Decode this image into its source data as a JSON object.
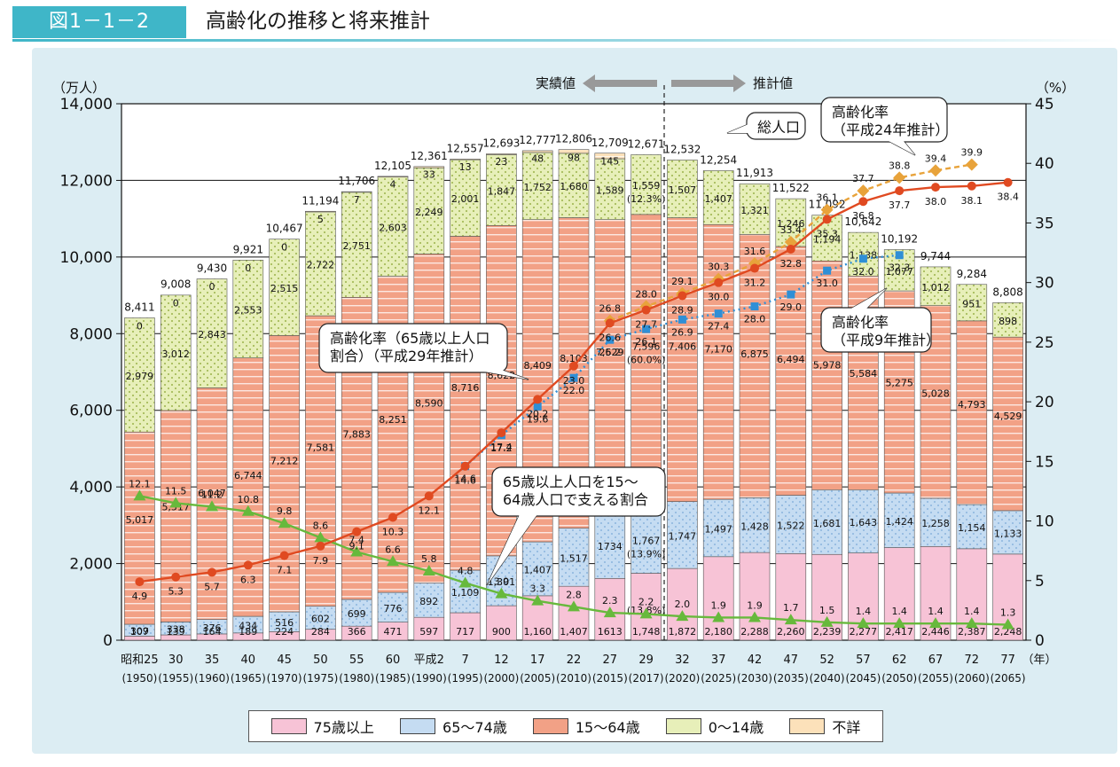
{
  "header": {
    "figure_number": "図1－1－2",
    "title": "高齢化の推移と将来推計"
  },
  "colors": {
    "age_75_over": "#f7c3d6",
    "age_65_74": "#c5dcf2",
    "age_15_64": "#f2a186",
    "age_0_14": "#e7efb9",
    "unknown": "#fce1ba",
    "ratio_line": "#e04a21",
    "h9_line": "#2f8fd6",
    "h24_line": "#e8a33b",
    "support_line": "#67b93c",
    "accent": "#3fb6c8"
  },
  "legend": [
    {
      "key": "age_75_over",
      "label": "75歳以上"
    },
    {
      "key": "age_65_74",
      "label": "65～74歳"
    },
    {
      "key": "age_15_64",
      "label": "15～64歳"
    },
    {
      "key": "age_0_14",
      "label": "0～14歳"
    },
    {
      "key": "unknown",
      "label": "不詳"
    }
  ],
  "annotations": {
    "left_axis_unit": "（万人）",
    "right_axis_unit": "（%）",
    "year_unit": "（年）",
    "actual": "実績値",
    "projected": "推計値",
    "total_population": "総人口",
    "ratio_h29": "高齢化率（65歳以上人口割合）（平成29年推計）",
    "ratio_h29_lines": [
      "高齢化率（65歳以上人口",
      "割合）（平成29年推計）"
    ],
    "ratio_h24_lines": [
      "高齢化率",
      "（平成24年推計）"
    ],
    "ratio_h9_lines": [
      "高齢化率",
      "（平成9年推計）"
    ],
    "support_lines": [
      "65歳以上人口を15～",
      "64歳人口で支える割合"
    ],
    "share_2017_1564": "(60.0%)",
    "share_2017_6574": "(13.9%)",
    "share_2017_75": "(13.8%)",
    "share_2017_014": "(12.3%)"
  },
  "chart_data": {
    "type": "bar",
    "title": "高齢化の推移と将来推計",
    "categories": [
      "昭和25",
      "30",
      "35",
      "40",
      "45",
      "50",
      "55",
      "60",
      "平成2",
      "7",
      "12",
      "17",
      "22",
      "27",
      "29",
      "32",
      "37",
      "42",
      "47",
      "52",
      "57",
      "62",
      "67",
      "72",
      "77"
    ],
    "category_years": [
      "(1950)",
      "(1955)",
      "(1960)",
      "(1965)",
      "(1970)",
      "(1975)",
      "(1980)",
      "(1985)",
      "(1990)",
      "(1995)",
      "(2000)",
      "(2005)",
      "(2010)",
      "(2015)",
      "(2017)",
      "(2020)",
      "(2025)",
      "(2030)",
      "(2035)",
      "(2040)",
      "(2045)",
      "(2050)",
      "(2055)",
      "(2060)",
      "(2065)"
    ],
    "ylim_left": [
      0,
      14000
    ],
    "ylim_right": [
      0,
      45
    ],
    "left_ticks": [
      "0",
      "2,000",
      "4,000",
      "6,000",
      "8,000",
      "10,000",
      "12,000",
      "14,000"
    ],
    "right_ticks": [
      "0",
      "5",
      "10",
      "15",
      "20",
      "25",
      "30",
      "35",
      "40",
      "45"
    ],
    "series": [
      {
        "name": "75歳以上",
        "values": [
          107,
          139,
          164,
          189,
          224,
          284,
          366,
          471,
          597,
          717,
          900,
          1160,
          1407,
          1613,
          1748,
          1872,
          2180,
          2288,
          2260,
          2239,
          2277,
          2417,
          2446,
          2387,
          2248
        ],
        "labels": [
          "107",
          "139",
          "164",
          "189",
          "224",
          "284",
          "366",
          "471",
          "597",
          "717",
          "900",
          "1,160",
          "1,407",
          "1613",
          "1,748",
          "1,872",
          "2,180",
          "2,288",
          "2,260",
          "2,239",
          "2,277",
          "2,417",
          "2,446",
          "2,387",
          "2,248"
        ]
      },
      {
        "name": "65～74歳",
        "values": [
          309,
          338,
          376,
          434,
          516,
          602,
          699,
          776,
          892,
          1109,
          1301,
          1407,
          1517,
          1734,
          1767,
          1747,
          1497,
          1428,
          1522,
          1681,
          1643,
          1424,
          1258,
          1154,
          1133
        ],
        "labels": [
          "309",
          "338",
          "376",
          "434",
          "516",
          "602",
          "699",
          "776",
          "892",
          "1,109",
          "1,301",
          "1,407",
          "1,517",
          "1734",
          "1,767",
          "1,747",
          "1,497",
          "1,428",
          "1,522",
          "1,681",
          "1,643",
          "1,424",
          "1,258",
          "1,154",
          "1,133"
        ]
      },
      {
        "name": "15～64歳",
        "values": [
          5017,
          5517,
          6047,
          6744,
          7212,
          7581,
          7883,
          8251,
          8590,
          8716,
          8622,
          8409,
          8103,
          7629,
          7596,
          7406,
          7170,
          6875,
          6494,
          5978,
          5584,
          5275,
          5028,
          4793,
          4529
        ],
        "labels": [
          "5,017",
          "5,517",
          "6,047",
          "6,744",
          "7,212",
          "7,581",
          "7,883",
          "8,251",
          "8,590",
          "8,716",
          "8,622",
          "8,409",
          "8,103",
          "7,629",
          "7,596",
          "7,406",
          "7,170",
          "6,875",
          "6,494",
          "5,978",
          "5,584",
          "5,275",
          "5,028",
          "4,793",
          "4,529"
        ]
      },
      {
        "name": "0～14歳",
        "values": [
          2979,
          3012,
          2843,
          2553,
          2515,
          2722,
          2751,
          2603,
          2249,
          2001,
          1847,
          1752,
          1680,
          1589,
          1559,
          1507,
          1407,
          1321,
          1246,
          1194,
          1138,
          1077,
          1012,
          951,
          898
        ],
        "labels": [
          "2,979",
          "3,012",
          "2,843",
          "2,553",
          "2,515",
          "2,722",
          "2,751",
          "2,603",
          "2,249",
          "2,001",
          "1,847",
          "1,752",
          "1,680",
          "1,589",
          "1,559",
          "1,507",
          "1,407",
          "1,321",
          "1,246",
          "1,194",
          "1,138",
          "1,077",
          "1,012",
          "951",
          "898"
        ]
      },
      {
        "name": "不詳",
        "values": [
          0,
          0,
          0,
          0,
          0,
          5,
          7,
          4,
          33,
          13,
          23,
          48,
          98,
          145,
          0,
          0,
          0,
          0,
          0,
          0,
          0,
          0,
          0,
          0,
          0
        ],
        "labels": [
          "0",
          "0",
          "0",
          "0",
          "0",
          "5",
          "7",
          "4",
          "33",
          "13",
          "23",
          "48",
          "98",
          "145",
          "",
          "",
          "",
          "",
          "",
          "",
          "",
          "",
          "",
          "",
          ""
        ]
      }
    ],
    "totals": [
      "8,411",
      "9,008",
      "9,430",
      "9,921",
      "10,467",
      "11,194",
      "11,706",
      "12,105",
      "12,361",
      "12,557",
      "12,693",
      "12,777",
      "12,806",
      "12,709",
      "12,671",
      "12,532",
      "12,254",
      "11,913",
      "11,522",
      "11,092",
      "10,642",
      "10,192",
      "9,744",
      "9,284",
      "8,808"
    ],
    "total_values": [
      8411,
      9008,
      9430,
      9921,
      10467,
      11194,
      11706,
      12105,
      12361,
      12557,
      12693,
      12777,
      12806,
      12709,
      12671,
      12532,
      12254,
      11913,
      11522,
      11092,
      10642,
      10192,
      9744,
      9284,
      8808
    ],
    "ratio_h29": {
      "name": "高齢化率（平成29年推計）",
      "values": [
        4.9,
        5.3,
        5.7,
        6.3,
        7.1,
        7.9,
        9.1,
        10.3,
        12.1,
        14.6,
        17.4,
        20.2,
        23.0,
        26.6,
        27.7,
        28.9,
        30.0,
        31.2,
        32.8,
        35.3,
        36.8,
        37.7,
        38.0,
        38.1,
        38.4
      ],
      "labels": [
        "4.9",
        "5.3",
        "5.7",
        "6.3",
        "7.1",
        "7.9",
        "9.1",
        "10.3",
        "12.1",
        "14.6",
        "17.4",
        "20.2",
        "23.0",
        "26.6",
        "27.7",
        "28.9",
        "30.0",
        "31.2",
        "32.8",
        "35.3",
        "36.8",
        "37.7",
        "38.0",
        "38.1",
        "38.4"
      ]
    },
    "ratio_h9": {
      "name": "高齢化率（平成9年推計）",
      "start_index": 9,
      "values": [
        14.6,
        17.2,
        19.6,
        22.0,
        25.2,
        26.1,
        26.9,
        27.4,
        28.0,
        29.0,
        31.0,
        32.0,
        32.3
      ],
      "labels": [
        "14.6",
        "17.2",
        "19.6",
        "22.0",
        "25.2",
        "26.1",
        "26.9",
        "27.4",
        "28.0",
        "29.0",
        "31.0",
        "32.0",
        "32.3"
      ]
    },
    "ratio_h24": {
      "name": "高齢化率（平成24年推計）",
      "start_index": 13,
      "values": [
        26.8,
        28.0,
        29.1,
        30.3,
        31.6,
        33.4,
        36.1,
        37.7,
        38.8,
        39.4,
        39.9
      ],
      "labels": [
        "26.8",
        "28.0",
        "29.1",
        "30.3",
        "31.6",
        "33.4",
        "36.1",
        "37.7",
        "38.8",
        "39.4",
        "39.9"
      ]
    },
    "support_ratio": {
      "name": "65歳以上人口を15～64歳人口で支える割合",
      "values": [
        12.1,
        11.5,
        11.2,
        10.8,
        9.8,
        8.6,
        7.4,
        6.6,
        5.8,
        4.8,
        3.9,
        3.3,
        2.8,
        2.3,
        2.2,
        2.0,
        1.9,
        1.9,
        1.7,
        1.5,
        1.4,
        1.4,
        1.4,
        1.4,
        1.3
      ],
      "labels": [
        "12.1",
        "11.5",
        "11.2",
        "10.8",
        "9.8",
        "8.6",
        "7.4",
        "6.6",
        "5.8",
        "4.8",
        "3.9",
        "3.3",
        "2.8",
        "2.3",
        "2.2",
        "2.0",
        "1.9",
        "1.9",
        "1.7",
        "1.5",
        "1.4",
        "1.4",
        "1.4",
        "1.4",
        "1.3"
      ]
    },
    "grid": true,
    "legend_position": "bottom"
  }
}
